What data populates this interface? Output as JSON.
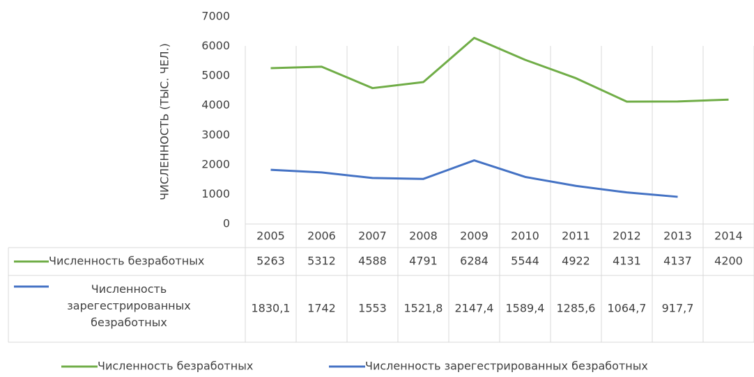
{
  "chart_data": {
    "type": "line",
    "y_label": "ЧИСЛЕННОСТЬ (ТЫС. ЧЕЛ.)",
    "categories": [
      "2005",
      "2006",
      "2007",
      "2008",
      "2009",
      "2010",
      "2011",
      "2012",
      "2013",
      "2014"
    ],
    "series": [
      {
        "name": "Численность безработных",
        "color": "#70ad47",
        "values": [
          5263,
          5312,
          4588,
          4791,
          6284,
          5544,
          4922,
          4131,
          4137,
          4200
        ]
      },
      {
        "name": "Численность зарегестрированных безработных",
        "color": "#4472c4",
        "values": [
          1830.1,
          1742,
          1553,
          1521.8,
          2147.4,
          1589.4,
          1285.6,
          1064.7,
          917.7,
          null
        ],
        "value_labels": [
          "1830,1",
          "1742",
          "1553",
          "1521,8",
          "2147,4",
          "1589,4",
          "1285,6",
          "1064,7",
          "917,7",
          null
        ]
      }
    ],
    "ylim": [
      0,
      7000
    ],
    "yticks": [
      0,
      1000,
      2000,
      3000,
      4000,
      5000,
      6000,
      7000
    ],
    "data_table": true,
    "legend": "bottom"
  }
}
